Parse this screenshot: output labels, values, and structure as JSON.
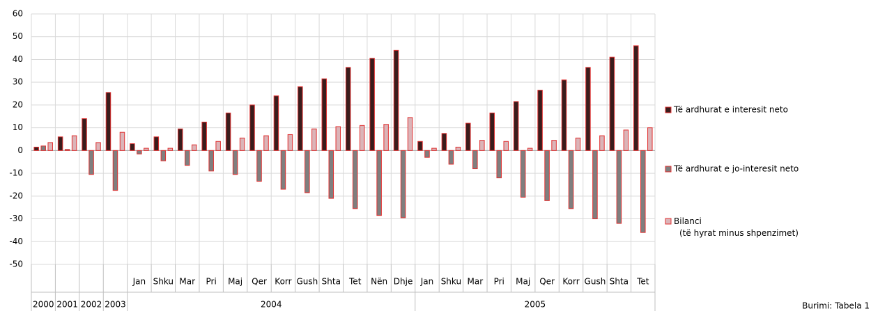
{
  "chart_data": {
    "type": "bar",
    "source": "Burimi: Tabela 1",
    "categories": [
      null,
      null,
      null,
      null,
      "Jan",
      "Shku",
      "Mar",
      "Pri",
      "Maj",
      "Qer",
      "Korr",
      "Gush",
      "Shta",
      "Tet",
      "Nën",
      "Dhje",
      "Jan",
      "Shku",
      "Mar",
      "Pri",
      "Maj",
      "Qer",
      "Korr",
      "Gush",
      "Shta",
      "Tet"
    ],
    "x_groups": [
      "2000",
      "2001",
      "2002",
      "2003",
      "2004",
      "2004",
      "2004",
      "2004",
      "2004",
      "2004",
      "2004",
      "2004",
      "2004",
      "2004",
      "2004",
      "2004",
      "2005",
      "2005",
      "2005",
      "2005",
      "2005",
      "2005",
      "2005",
      "2005",
      "2005",
      "2005"
    ],
    "series": [
      {
        "name": "Të ardhurat e interesit neto",
        "color": "#3a1c1c",
        "values": [
          1.5,
          6,
          14,
          25.5,
          3,
          6,
          9.5,
          12.5,
          16.5,
          20,
          24,
          28,
          31.5,
          36.5,
          40.5,
          44,
          4,
          7.5,
          12,
          16.5,
          21.5,
          26.5,
          31,
          36.5,
          41,
          46
        ]
      },
      {
        "name": "Të ardhurat e jo-interesit neto",
        "color": "#7f7f7f",
        "values": [
          2,
          0.5,
          -10.5,
          -17.5,
          -1.5,
          -4.5,
          -6.5,
          -9,
          -10.5,
          -13.5,
          -17,
          -18.5,
          -21,
          -25.5,
          -28.5,
          -29.5,
          -3,
          -6,
          -8,
          -12,
          -20.5,
          -22,
          -25.5,
          -30,
          -32,
          -36
        ]
      },
      {
        "name": "Bilanci\n(të hyrat minus shpenzimet)",
        "color": "#dbb4b8",
        "values": [
          3.5,
          6.5,
          3.5,
          8,
          1,
          1,
          2.5,
          4,
          5.5,
          6.5,
          7,
          9.5,
          10.5,
          11,
          11.5,
          14.5,
          1,
          1.5,
          4.5,
          4,
          1,
          4.5,
          5.5,
          6.5,
          9,
          10
        ]
      }
    ],
    "ylim": [
      -50,
      60
    ],
    "yticks": [
      -50,
      -40,
      -30,
      -20,
      -10,
      0,
      10,
      20,
      30,
      40,
      50,
      60
    ],
    "grid": true,
    "legend": "right"
  }
}
